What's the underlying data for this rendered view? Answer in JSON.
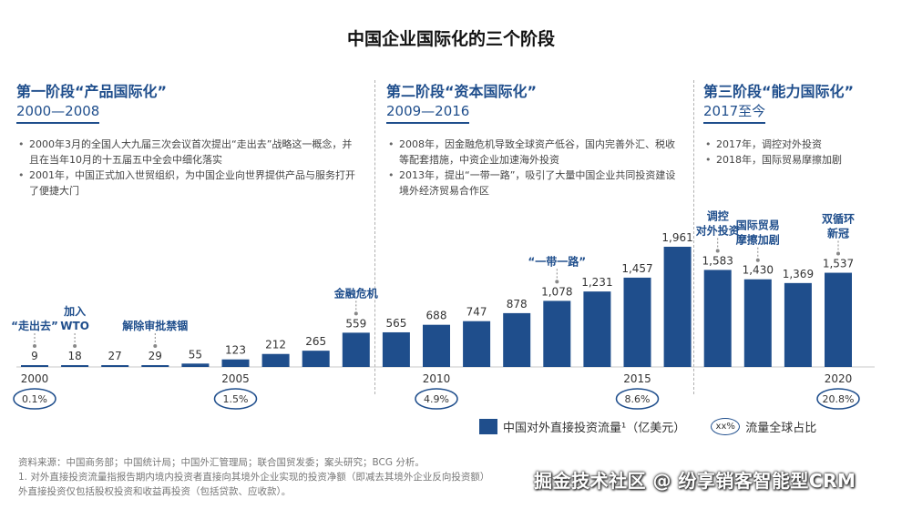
{
  "title": "中国企业国际化的三个阶段",
  "phases": [
    {
      "title": "第一阶段“产品国际化”",
      "period": "2000—2008",
      "bullets": [
        "2000年3月的全国人大九届三次会议首次提出“走出去”战略这一概念，并且在当年10月的十五届五中全会中细化落实",
        "2001年，中国正式加入世贸组织，为中国企业向世界提供产品与服务打开了便捷大门"
      ]
    },
    {
      "title": "第二阶段“资本国际化”",
      "period": "2009—2016",
      "bullets": [
        "2008年，因金融危机导致全球资产低谷，国内完善外汇、税收等配套措施，中资企业加速海外投资",
        "2013年，提出“一带一路”，吸引了大量中国企业共同投资建设境外经济贸易合作区"
      ]
    },
    {
      "title": "第三阶段“能力国际化”",
      "period": "2017至今",
      "bullets": [
        "2017年，调控对外投资",
        "2018年，国际贸易摩擦加剧"
      ]
    }
  ],
  "chart_data": {
    "type": "bar",
    "title": "",
    "categories": [
      "2000",
      "2001",
      "2002",
      "2003",
      "2004",
      "2005",
      "2006",
      "2007",
      "2008",
      "2009",
      "2010",
      "2011",
      "2012",
      "2013",
      "2014",
      "2015",
      "2016",
      "2017",
      "2018",
      "2019",
      "2020"
    ],
    "series": [
      {
        "name": "中国对外直接投资流量¹（亿美元）",
        "values": [
          9,
          18,
          27,
          29,
          55,
          123,
          212,
          265,
          559,
          565,
          688,
          747,
          878,
          1078,
          1231,
          1457,
          1961,
          1583,
          1430,
          1369,
          1537
        ]
      }
    ],
    "x_tick_labels": [
      {
        "year": "2000",
        "label": "2000"
      },
      {
        "year": "2005",
        "label": "2005"
      },
      {
        "year": "2010",
        "label": "2010"
      },
      {
        "year": "2015",
        "label": "2015"
      },
      {
        "year": "2020",
        "label": "2020"
      }
    ],
    "global_share": [
      {
        "year": "2000",
        "label": "0.1%"
      },
      {
        "year": "2005",
        "label": "1.5%"
      },
      {
        "year": "2010",
        "label": "4.9%"
      },
      {
        "year": "2015",
        "label": "8.6%"
      },
      {
        "year": "2020",
        "label": "20.8%"
      }
    ],
    "annotations": [
      {
        "year": "2000",
        "text": "“走出去”"
      },
      {
        "year": "2001",
        "text": "加入\nWTO"
      },
      {
        "year": "2003",
        "text": "解除审批禁锢"
      },
      {
        "year": "2008",
        "text": "金融危机"
      },
      {
        "year": "2013",
        "text": "“一带一路”"
      },
      {
        "year": "2017",
        "text": "调控\n对外投资"
      },
      {
        "year": "2018",
        "text": "国际贸易\n摩擦加剧"
      },
      {
        "year": "2020",
        "text": "双循环\n新冠"
      }
    ],
    "ylim": [
      0,
      2000
    ],
    "color": "#1f4e8c"
  },
  "legend": {
    "bar_label": "中国对外直接投资流量¹（亿美元）",
    "oval_text": "xx%",
    "share_label": "流量全球占比"
  },
  "notes": [
    "资料来源：中国商务部；中国统计局；中国外汇管理局；联合国贸发委；案头研究；BCG 分析。",
    "1. 对外直接投资流量指报告期内境内投资者直接向其境外企业实现的投资净额（即减去其境外企业反向投资额）",
    "外直接投资仅包括股权投资和收益再投资（包括贷款、应收款）。"
  ],
  "watermark": "掘金技术社区 @ 纷享销客智能型CRM"
}
